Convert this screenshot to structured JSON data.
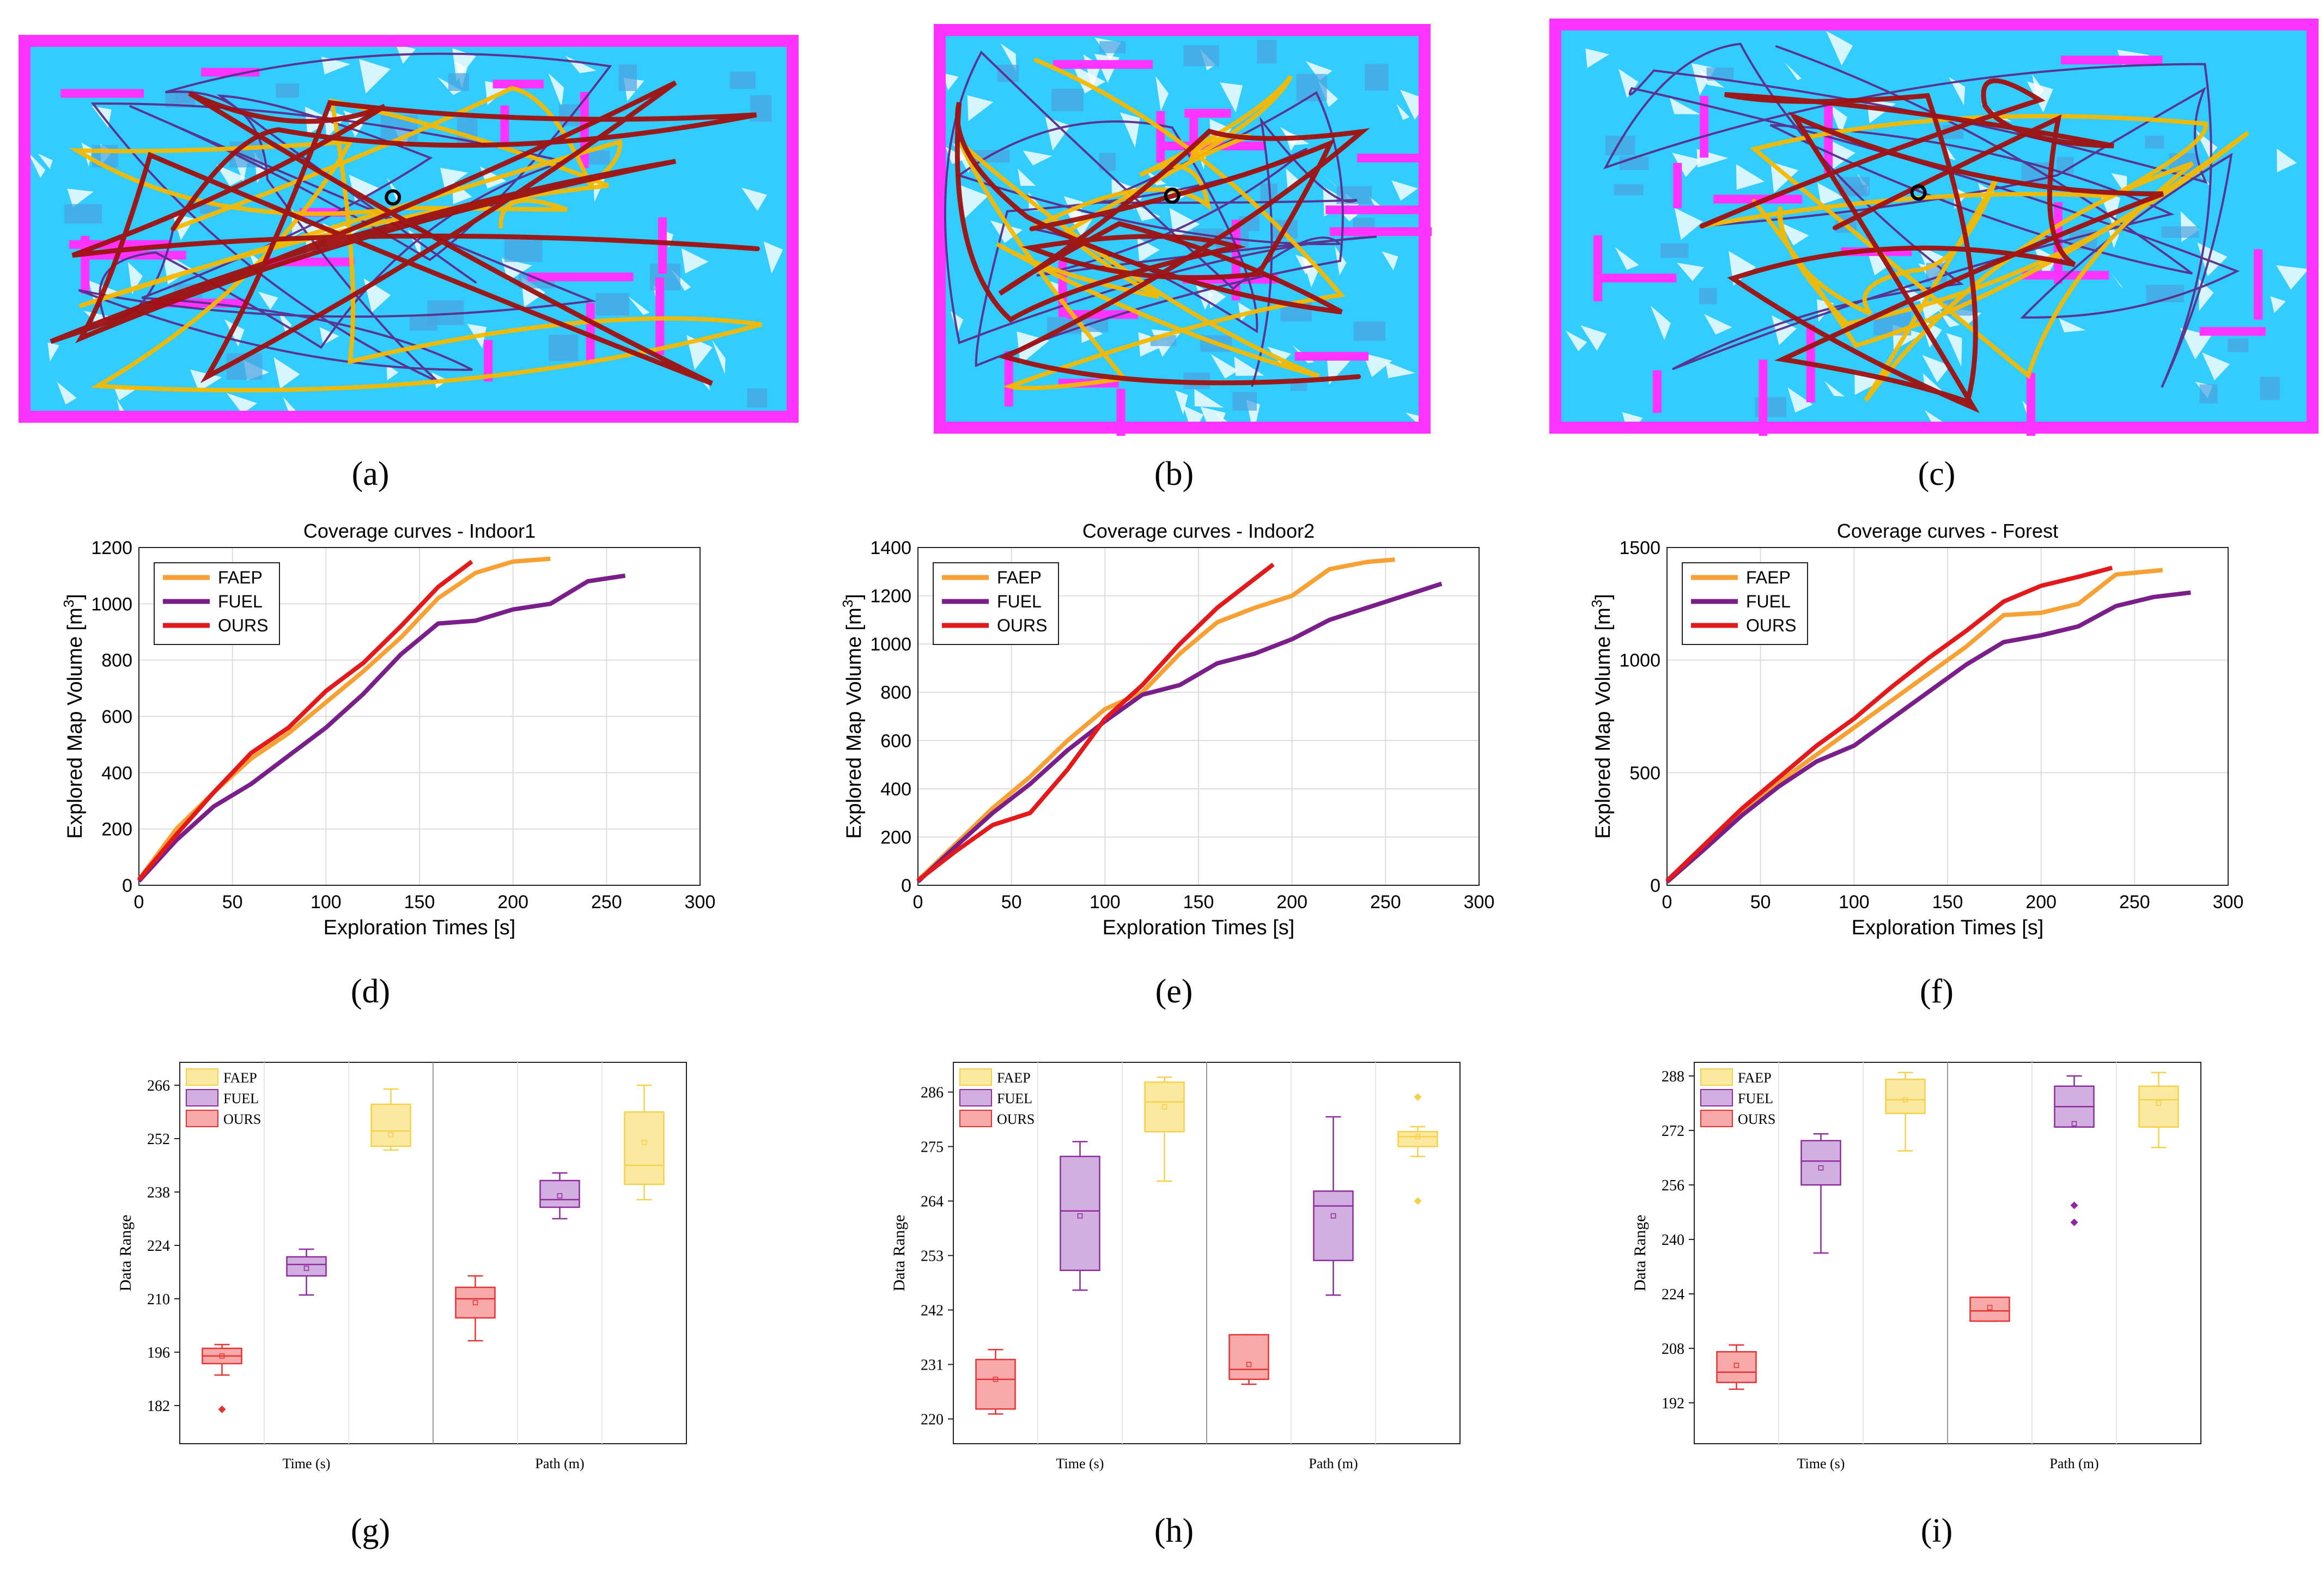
{
  "captions": [
    "(a)",
    "(b)",
    "(c)",
    "(d)",
    "(e)",
    "(f)",
    "(g)",
    "(h)",
    "(i)"
  ],
  "maps": [
    {
      "name": "Indoor1",
      "colors": {
        "wall": "#ff33ff",
        "floor": "#33ccff",
        "faep": "#f5b800",
        "fuel": "#5a2d8c",
        "ours": "#a01010"
      }
    },
    {
      "name": "Indoor2",
      "colors": {
        "wall": "#ff33ff",
        "floor": "#33ccff",
        "faep": "#f5b800",
        "fuel": "#5a2d8c",
        "ours": "#a01010"
      }
    },
    {
      "name": "Forest",
      "colors": {
        "wall": "#ff33ff",
        "floor": "#33ccff",
        "faep": "#f5b800",
        "fuel": "#5a2d8c",
        "ours": "#a01010"
      }
    }
  ],
  "chart_data": [
    {
      "type": "line",
      "title": "Coverage curves - Indoor1",
      "xlabel": "Exploration Times [s]",
      "ylabel": "Explored Map Volume [m",
      "ylabel_sup": "3",
      "ylabel_end": "]",
      "xlim": [
        0,
        300
      ],
      "ylim": [
        0,
        1200
      ],
      "xticks": [
        0,
        50,
        100,
        150,
        200,
        250,
        300
      ],
      "yticks": [
        0,
        200,
        400,
        600,
        800,
        1000,
        1200
      ],
      "grid": true,
      "legend": "top-left",
      "series": [
        {
          "name": "FAEP",
          "color": "#f7a033",
          "x": [
            0,
            20,
            40,
            60,
            80,
            100,
            120,
            140,
            160,
            180,
            200,
            220
          ],
          "y": [
            20,
            200,
            330,
            450,
            540,
            650,
            760,
            880,
            1020,
            1110,
            1150,
            1160
          ]
        },
        {
          "name": "FUEL",
          "color": "#7a1f8a",
          "x": [
            0,
            20,
            40,
            60,
            80,
            100,
            120,
            140,
            160,
            180,
            200,
            220,
            240,
            260
          ],
          "y": [
            15,
            160,
            280,
            360,
            460,
            560,
            680,
            820,
            930,
            940,
            980,
            1000,
            1080,
            1100
          ]
        },
        {
          "name": "OURS",
          "color": "#e31a1c",
          "x": [
            0,
            20,
            40,
            60,
            80,
            100,
            120,
            140,
            160,
            178
          ],
          "y": [
            20,
            180,
            330,
            470,
            560,
            690,
            790,
            920,
            1060,
            1150
          ]
        }
      ]
    },
    {
      "type": "line",
      "title": "Coverage curves - Indoor2",
      "xlabel": "Exploration Times [s]",
      "ylabel": "Explored Map Volume [m",
      "ylabel_sup": "3",
      "ylabel_end": "]",
      "xlim": [
        0,
        300
      ],
      "ylim": [
        0,
        1400
      ],
      "xticks": [
        0,
        50,
        100,
        150,
        200,
        250,
        300
      ],
      "yticks": [
        0,
        200,
        400,
        600,
        800,
        1000,
        1200,
        1400
      ],
      "grid": true,
      "legend": "top-left",
      "series": [
        {
          "name": "FAEP",
          "color": "#f7a033",
          "x": [
            0,
            20,
            40,
            60,
            80,
            100,
            120,
            140,
            160,
            180,
            200,
            220,
            240,
            255
          ],
          "y": [
            20,
            170,
            320,
            450,
            600,
            730,
            800,
            960,
            1090,
            1150,
            1200,
            1310,
            1340,
            1350
          ]
        },
        {
          "name": "FUEL",
          "color": "#7a1f8a",
          "x": [
            0,
            20,
            40,
            60,
            80,
            100,
            120,
            140,
            160,
            180,
            200,
            220,
            240,
            260,
            280
          ],
          "y": [
            15,
            160,
            300,
            420,
            560,
            680,
            790,
            830,
            920,
            960,
            1020,
            1100,
            1150,
            1200,
            1250
          ]
        },
        {
          "name": "OURS",
          "color": "#e31a1c",
          "x": [
            0,
            20,
            40,
            60,
            80,
            100,
            120,
            140,
            160,
            180,
            190
          ],
          "y": [
            20,
            140,
            250,
            300,
            480,
            690,
            830,
            1000,
            1150,
            1270,
            1330
          ]
        }
      ]
    },
    {
      "type": "line",
      "title": "Coverage curves - Forest",
      "xlabel": "Exploration Times [s]",
      "ylabel": "Explored Map Volume [m",
      "ylabel_sup": "3",
      "ylabel_end": "]",
      "xlim": [
        0,
        300
      ],
      "ylim": [
        0,
        1500
      ],
      "xticks": [
        0,
        50,
        100,
        150,
        200,
        250,
        300
      ],
      "yticks": [
        0,
        500,
        1000,
        1500
      ],
      "grid": true,
      "legend": "top-left",
      "series": [
        {
          "name": "FAEP",
          "color": "#f7a033",
          "x": [
            0,
            20,
            40,
            60,
            80,
            100,
            120,
            140,
            160,
            180,
            200,
            220,
            240,
            265
          ],
          "y": [
            20,
            170,
            330,
            460,
            580,
            700,
            820,
            940,
            1060,
            1200,
            1210,
            1250,
            1380,
            1400
          ]
        },
        {
          "name": "FUEL",
          "color": "#7a1f8a",
          "x": [
            0,
            20,
            40,
            60,
            80,
            100,
            120,
            140,
            160,
            180,
            200,
            220,
            240,
            260,
            280
          ],
          "y": [
            15,
            160,
            310,
            440,
            550,
            620,
            740,
            860,
            980,
            1080,
            1110,
            1150,
            1240,
            1280,
            1300
          ]
        },
        {
          "name": "OURS",
          "color": "#e31a1c",
          "x": [
            0,
            20,
            40,
            60,
            80,
            100,
            120,
            140,
            160,
            180,
            200,
            220,
            238
          ],
          "y": [
            20,
            180,
            340,
            480,
            620,
            740,
            880,
            1010,
            1130,
            1260,
            1330,
            1370,
            1410
          ]
        }
      ]
    },
    {
      "type": "box",
      "ylabel": "Data Range",
      "groups": [
        "Time (s)",
        "Path (m)"
      ],
      "yticks": [
        182,
        196,
        210,
        224,
        238,
        252,
        266
      ],
      "ylim": [
        172,
        272
      ],
      "legend": "top-left",
      "series": [
        {
          "name": "FAEP",
          "color": "#f5d04a",
          "fill": "#fbe9a0",
          "boxes": [
            {
              "min": 249,
              "q1": 250,
              "median": 254,
              "q3": 261,
              "max": 265,
              "mean": 253,
              "outliers": []
            },
            {
              "min": 236,
              "q1": 240,
              "median": 245,
              "q3": 259,
              "max": 266,
              "mean": 251,
              "outliers": []
            }
          ]
        },
        {
          "name": "FUEL",
          "color": "#8e2b9c",
          "fill": "#d3aee0",
          "boxes": [
            {
              "min": 211,
              "q1": 216,
              "median": 219,
              "q3": 221,
              "max": 223,
              "mean": 218,
              "outliers": []
            },
            {
              "min": 231,
              "q1": 234,
              "median": 236,
              "q3": 241,
              "max": 243,
              "mean": 237,
              "outliers": []
            }
          ]
        },
        {
          "name": "OURS",
          "color": "#e63232",
          "fill": "#f8aaaa",
          "boxes": [
            {
              "min": 190,
              "q1": 193,
              "median": 195,
              "q3": 197,
              "max": 198,
              "mean": 195,
              "outliers": [
                181
              ]
            },
            {
              "min": 199,
              "q1": 205,
              "median": 210,
              "q3": 213,
              "max": 216,
              "mean": 209,
              "outliers": []
            }
          ]
        }
      ]
    },
    {
      "type": "box",
      "ylabel": "Data Range",
      "groups": [
        "Time (s)",
        "Path (m)"
      ],
      "yticks": [
        220,
        231,
        242,
        253,
        264,
        275,
        286
      ],
      "ylim": [
        215,
        292
      ],
      "legend": "top-left",
      "series": [
        {
          "name": "FAEP",
          "color": "#f5d04a",
          "fill": "#fbe9a0",
          "boxes": [
            {
              "min": 268,
              "q1": 278,
              "median": 284,
              "q3": 288,
              "max": 289,
              "mean": 283,
              "outliers": []
            },
            {
              "min": 273,
              "q1": 275,
              "median": 277,
              "q3": 278,
              "max": 279,
              "mean": 277,
              "outliers": [
                264,
                285
              ]
            }
          ]
        },
        {
          "name": "FUEL",
          "color": "#8e2b9c",
          "fill": "#d3aee0",
          "boxes": [
            {
              "min": 246,
              "q1": 250,
              "median": 262,
              "q3": 273,
              "max": 276,
              "mean": 261,
              "outliers": []
            },
            {
              "min": 245,
              "q1": 252,
              "median": 263,
              "q3": 266,
              "max": 281,
              "mean": 261,
              "outliers": []
            }
          ]
        },
        {
          "name": "OURS",
          "color": "#e63232",
          "fill": "#f8aaaa",
          "boxes": [
            {
              "min": 221,
              "q1": 222,
              "median": 228,
              "q3": 232,
              "max": 234,
              "mean": 228,
              "outliers": []
            },
            {
              "min": 227,
              "q1": 228,
              "median": 230,
              "q3": 237,
              "max": 237,
              "mean": 231,
              "outliers": []
            }
          ]
        }
      ]
    },
    {
      "type": "box",
      "ylabel": "Data Range",
      "groups": [
        "Time (s)",
        "Path (m)"
      ],
      "yticks": [
        192,
        208,
        224,
        240,
        256,
        272,
        288
      ],
      "ylim": [
        180,
        292
      ],
      "legend": "top-left",
      "series": [
        {
          "name": "FAEP",
          "color": "#f5d04a",
          "fill": "#fbe9a0",
          "boxes": [
            {
              "min": 266,
              "q1": 277,
              "median": 281,
              "q3": 287,
              "max": 289,
              "mean": 281,
              "outliers": []
            },
            {
              "min": 267,
              "q1": 273,
              "median": 281,
              "q3": 285,
              "max": 289,
              "mean": 280,
              "outliers": []
            }
          ]
        },
        {
          "name": "FUEL",
          "color": "#8e2b9c",
          "fill": "#d3aee0",
          "boxes": [
            {
              "min": 236,
              "q1": 256,
              "median": 263,
              "q3": 269,
              "max": 271,
              "mean": 261,
              "outliers": []
            },
            {
              "min": 273,
              "q1": 273,
              "median": 279,
              "q3": 285,
              "max": 288,
              "mean": 274,
              "outliers": [
                250,
                245
              ]
            }
          ]
        },
        {
          "name": "OURS",
          "color": "#e63232",
          "fill": "#f8aaaa",
          "boxes": [
            {
              "min": 196,
              "q1": 198,
              "median": 201,
              "q3": 207,
              "max": 209,
              "mean": 203,
              "outliers": []
            },
            {
              "min": 216,
              "q1": 216,
              "median": 219,
              "q3": 223,
              "max": 223,
              "mean": 220,
              "outliers": []
            }
          ]
        }
      ]
    }
  ]
}
